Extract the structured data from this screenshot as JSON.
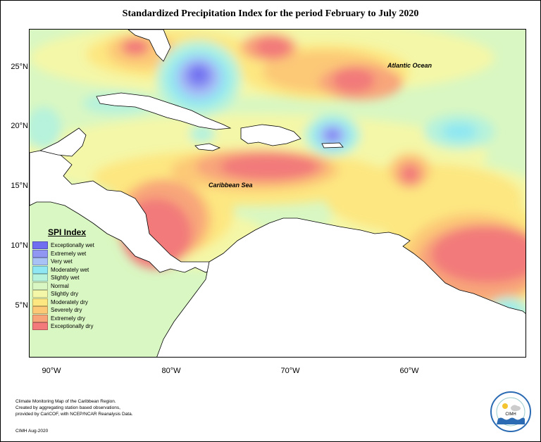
{
  "title": "Standardized Precipitation Index for the period February to July 2020",
  "map": {
    "labels": {
      "atlantic": "Atlantic Ocean",
      "caribbean": "Caribbean Sea"
    },
    "lat_ticks": [
      "25°N",
      "20°N",
      "15°N",
      "10°N",
      "5°N"
    ],
    "lon_ticks": [
      "90°W",
      "80°W",
      "70°W",
      "60°W"
    ]
  },
  "legend": {
    "title": "SPI Index",
    "items": [
      {
        "label": "Exceptionally wet",
        "color": "#6f6ef0"
      },
      {
        "label": "Extremely wet",
        "color": "#8f97f3"
      },
      {
        "label": "Very wet",
        "color": "#a9c2f6"
      },
      {
        "label": "Moderately wet",
        "color": "#8ee7f2"
      },
      {
        "label": "Slightly wet",
        "color": "#b6f2dc"
      },
      {
        "label": "Normal",
        "color": "#d9f7c2"
      },
      {
        "label": "Slightly dry",
        "color": "#f4f7a7"
      },
      {
        "label": "Moderately dry",
        "color": "#fde781"
      },
      {
        "label": "Severely dry",
        "color": "#fcc977"
      },
      {
        "label": "Extremely dry",
        "color": "#f8a57a"
      },
      {
        "label": "Exceptionally dry",
        "color": "#f27a7a"
      }
    ]
  },
  "footer": {
    "line1": "Climate Monitoring Map of the Caribbean Region.",
    "line2": "Created by aggregating station based observations,",
    "line3": "provided by CariCOF, with NCEP/NCAR Reanalysis Data.",
    "credit": "CIMH Aug-2020"
  },
  "logo": {
    "name": "CIMH",
    "icon": "cimh-logo"
  }
}
